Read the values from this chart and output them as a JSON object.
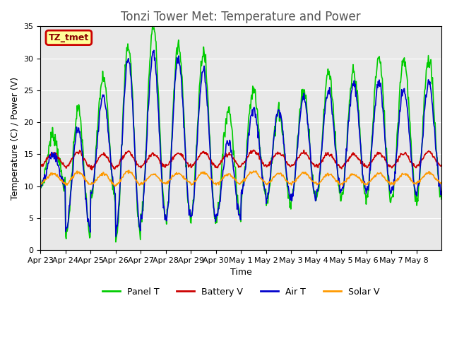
{
  "title": "Tonzi Tower Met: Temperature and Power",
  "xlabel": "Time",
  "ylabel": "Temperature (C) / Power (V)",
  "ylim": [
    0,
    35
  ],
  "yticks": [
    0,
    5,
    10,
    15,
    20,
    25,
    30,
    35
  ],
  "background_color": "#ffffff",
  "plot_bg_color": "#e8e8e8",
  "legend_label": "TZ_tmet",
  "legend_box_color": "#ffff99",
  "legend_box_edge": "#cc0000",
  "series": {
    "panel_t": {
      "label": "Panel T",
      "color": "#00cc00"
    },
    "battery_v": {
      "label": "Battery V",
      "color": "#cc0000"
    },
    "air_t": {
      "label": "Air T",
      "color": "#0000cc"
    },
    "solar_v": {
      "label": "Solar V",
      "color": "#ff9900"
    }
  },
  "xtick_labels": [
    "Apr 23",
    "Apr 24",
    "Apr 25",
    "Apr 26",
    "Apr 27",
    "Apr 28",
    "Apr 29",
    "Apr 30",
    "May 1",
    "May 2",
    "May 3",
    "May 4",
    "May 5",
    "May 6",
    "May 7",
    "May 8"
  ],
  "n_days": 16,
  "title_fontsize": 12,
  "axis_fontsize": 9,
  "tick_fontsize": 8
}
